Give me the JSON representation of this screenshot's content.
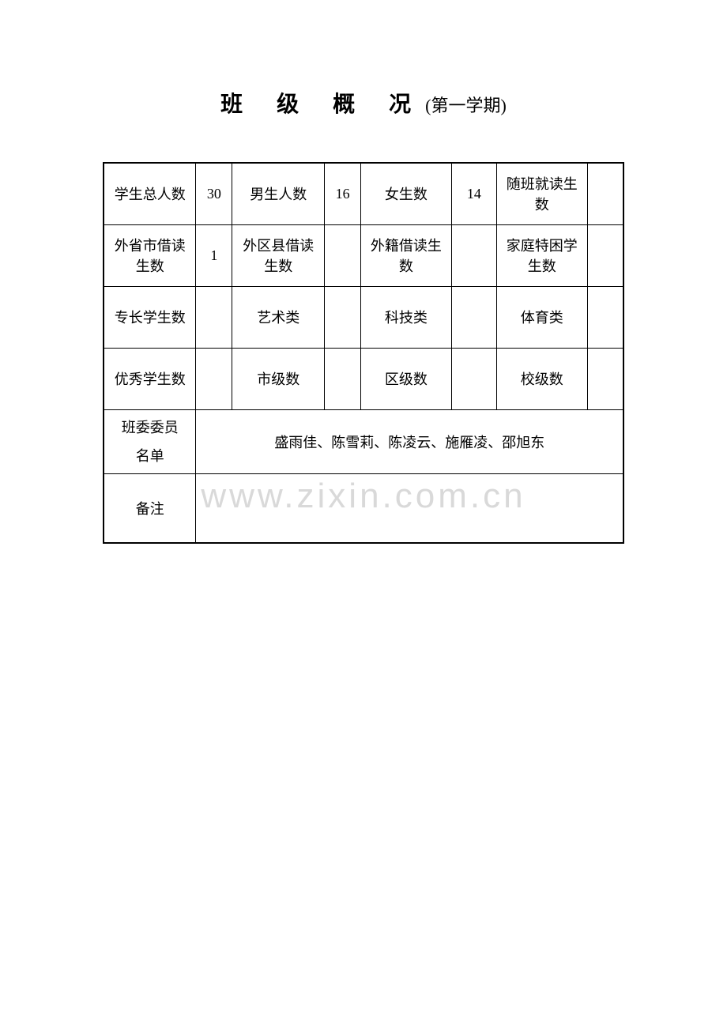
{
  "title": {
    "main": "班 级 概 况",
    "sub": "(第一学期)"
  },
  "table": {
    "row1": {
      "label1": "学生总人数",
      "value1": "30",
      "label2": "男生人数",
      "value2": "16",
      "label3": "女生数",
      "value3": "14",
      "label4": "随班就读生数",
      "value4": ""
    },
    "row2": {
      "label1": "外省市借读生数",
      "value1": "1",
      "label2": "外区县借读生数",
      "value2": "",
      "label3": "外籍借读生数",
      "value3": "",
      "label4": "家庭特困学生数",
      "value4": ""
    },
    "row3": {
      "label1": "专长学生数",
      "value1": "",
      "label2": "艺术类",
      "value2": "",
      "label3": "科技类",
      "value3": "",
      "label4": "体育类",
      "value4": ""
    },
    "row4": {
      "label1": "优秀学生数",
      "value1": "",
      "label2": "市级数",
      "value2": "",
      "label3": "区级数",
      "value3": "",
      "label4": "校级数",
      "value4": ""
    },
    "row5": {
      "label_line1": "班委委员",
      "label_line2": "名单",
      "value": "盛雨佳、陈雪莉、陈凌云、施雁凌、邵旭东"
    },
    "row6": {
      "label": "备注",
      "value": ""
    }
  },
  "watermark": "www.zixin.com.cn"
}
